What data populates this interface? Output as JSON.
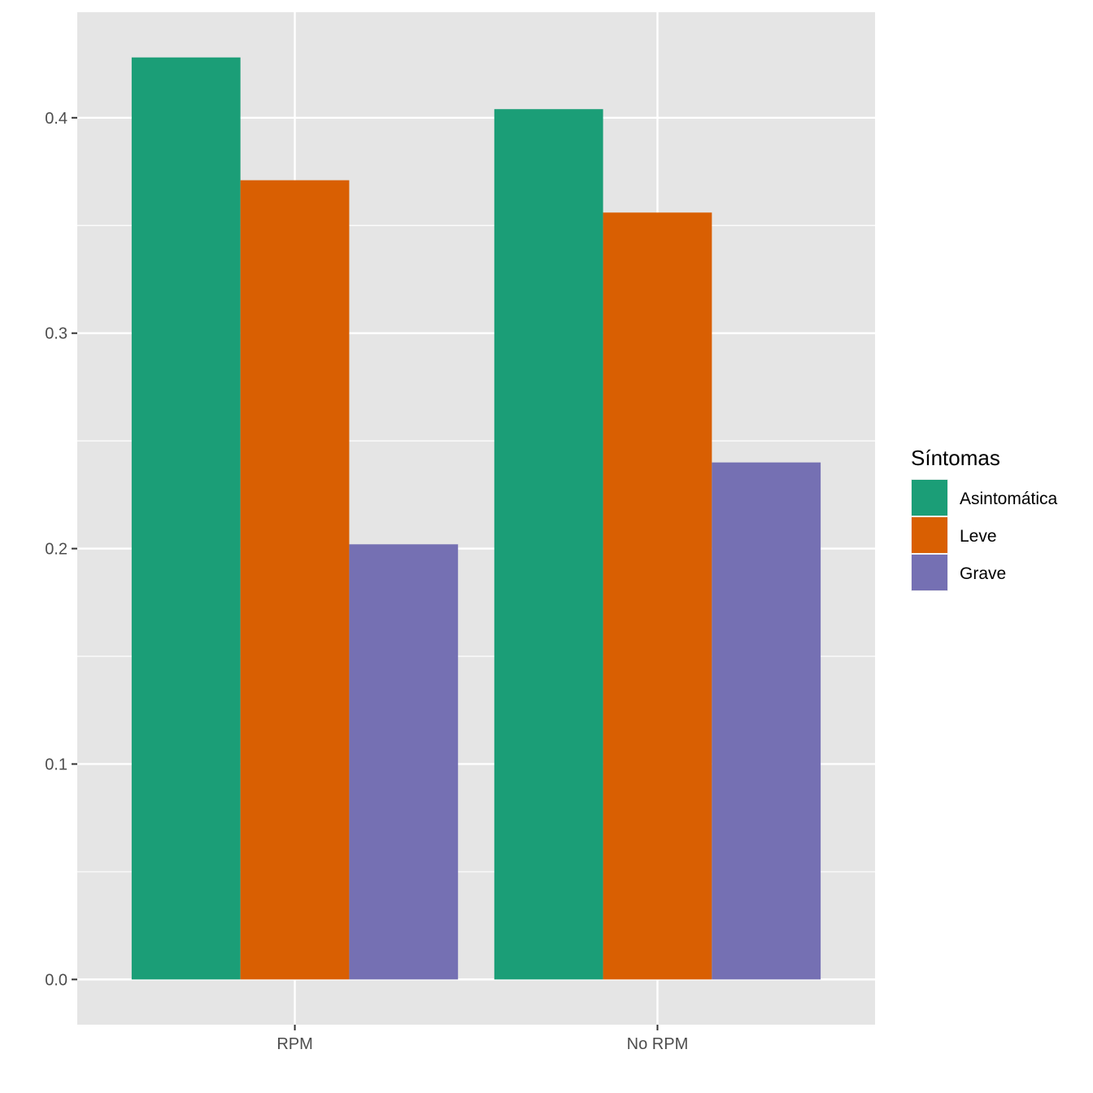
{
  "chart_data": {
    "type": "bar",
    "categories": [
      "RPM",
      "No RPM"
    ],
    "series": [
      {
        "name": "Asintomática",
        "values": [
          0.428,
          0.404
        ],
        "color": "#1B9E77"
      },
      {
        "name": "Leve",
        "values": [
          0.371,
          0.356
        ],
        "color": "#D95F02"
      },
      {
        "name": "Grave",
        "values": [
          0.202,
          0.24
        ],
        "color": "#7570B3"
      }
    ],
    "title": "",
    "xlabel": "",
    "ylabel": "",
    "ylim": [
      -0.021,
      0.449
    ],
    "y_ticks": [
      0.0,
      0.1,
      0.2,
      0.3,
      0.4
    ],
    "y_tick_labels": [
      "0.0",
      "0.1",
      "0.2",
      "0.3",
      "0.4"
    ],
    "grid": true,
    "legend": {
      "title": "Síntomas",
      "position": "right"
    },
    "panel_background": "#E5E5E5",
    "grid_color": "#FFFFFF"
  }
}
